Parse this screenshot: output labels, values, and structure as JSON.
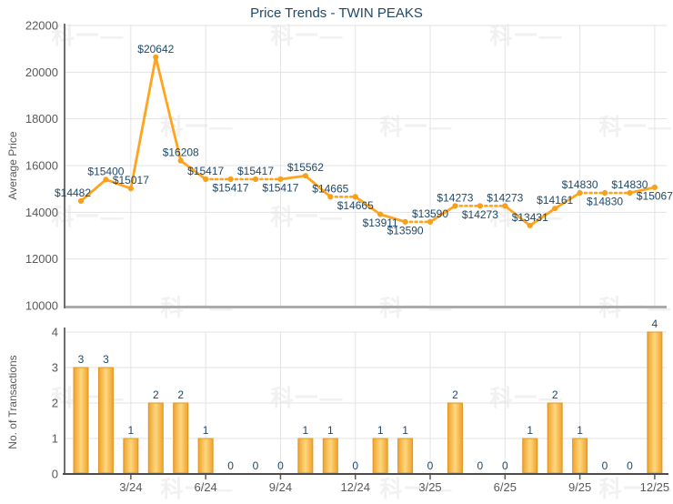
{
  "title": "Price Trends - TWIN PEAKS",
  "watermark_text": "科一",
  "colors": {
    "title": "#1f4868",
    "data_label": "#1f4868",
    "tick_label": "#595959",
    "axis_title": "#595959",
    "grid": "#e3e3e3",
    "price_baseline_axis": "#ababab",
    "left_axis": "#6e6e6e",
    "txn_baseline_axis": "#4d4d4d",
    "line": "#ffa41c",
    "marker": "#f9a01b",
    "bar_edge": "#efa22a",
    "bar_center": "#ffd77e",
    "bar_border": "#e09526",
    "watermark": "#f1f1f1"
  },
  "x_axis": {
    "tick_labels": [
      "3/24",
      "6/24",
      "9/24",
      "12/24",
      "3/25",
      "6/25",
      "9/25",
      "12/25"
    ],
    "tick_positions": [
      3,
      6,
      9,
      12,
      15,
      18,
      21,
      24
    ]
  },
  "chart_data": [
    {
      "type": "line",
      "title": "Price Trends - TWIN PEAKS",
      "ylabel": "Average Price",
      "ylim": [
        10000,
        22000
      ],
      "ytick_labels": [
        "22000",
        "20000",
        "18000",
        "16000",
        "14000",
        "12000",
        "10000"
      ],
      "grid": true,
      "legend": "none",
      "n_points": 24,
      "values": [
        14482,
        15400,
        15017,
        20642,
        16208,
        15417,
        15417,
        15417,
        15417,
        15562,
        14665,
        14665,
        13911,
        13590,
        13590,
        14273,
        14273,
        14273,
        13431,
        14161,
        14830,
        14830,
        14830,
        15067
      ],
      "point_labels": [
        "$14482",
        "$15400",
        "$15017",
        "$20642",
        "$16208",
        "$15417",
        "$15417",
        "$15417",
        "$15417",
        "$15562",
        "$14665",
        "$14665",
        "$13911",
        "$13590",
        "$13590",
        "$14273",
        "$14273",
        "$14273",
        "$13431",
        "$14161",
        "$14830",
        "$14830",
        "$14830",
        "$15067"
      ],
      "label_positions": [
        "above",
        "above",
        "above",
        "above",
        "above",
        "above",
        "below",
        "above",
        "below",
        "above",
        "above",
        "below",
        "below",
        "below",
        "above",
        "above",
        "below",
        "above",
        "above",
        "above",
        "above",
        "below",
        "above",
        "below"
      ],
      "dotted_segment_rule": "segment is dotted when its end month had 0 transactions"
    },
    {
      "type": "bar",
      "ylabel": "No. of Transactions",
      "ylim": [
        0,
        4
      ],
      "ytick_labels": [
        "0",
        "1",
        "2",
        "3",
        "4"
      ],
      "grid": true,
      "values": [
        3,
        3,
        1,
        2,
        2,
        1,
        0,
        0,
        0,
        1,
        1,
        0,
        1,
        1,
        0,
        2,
        0,
        0,
        1,
        2,
        1,
        0,
        0,
        4
      ],
      "bar_labels": [
        "3",
        "3",
        "1",
        "2",
        "2",
        "1",
        "0",
        "0",
        "0",
        "1",
        "1",
        "0",
        "1",
        "1",
        "0",
        "2",
        "0",
        "0",
        "1",
        "2",
        "1",
        "0",
        "0",
        "4"
      ]
    }
  ]
}
